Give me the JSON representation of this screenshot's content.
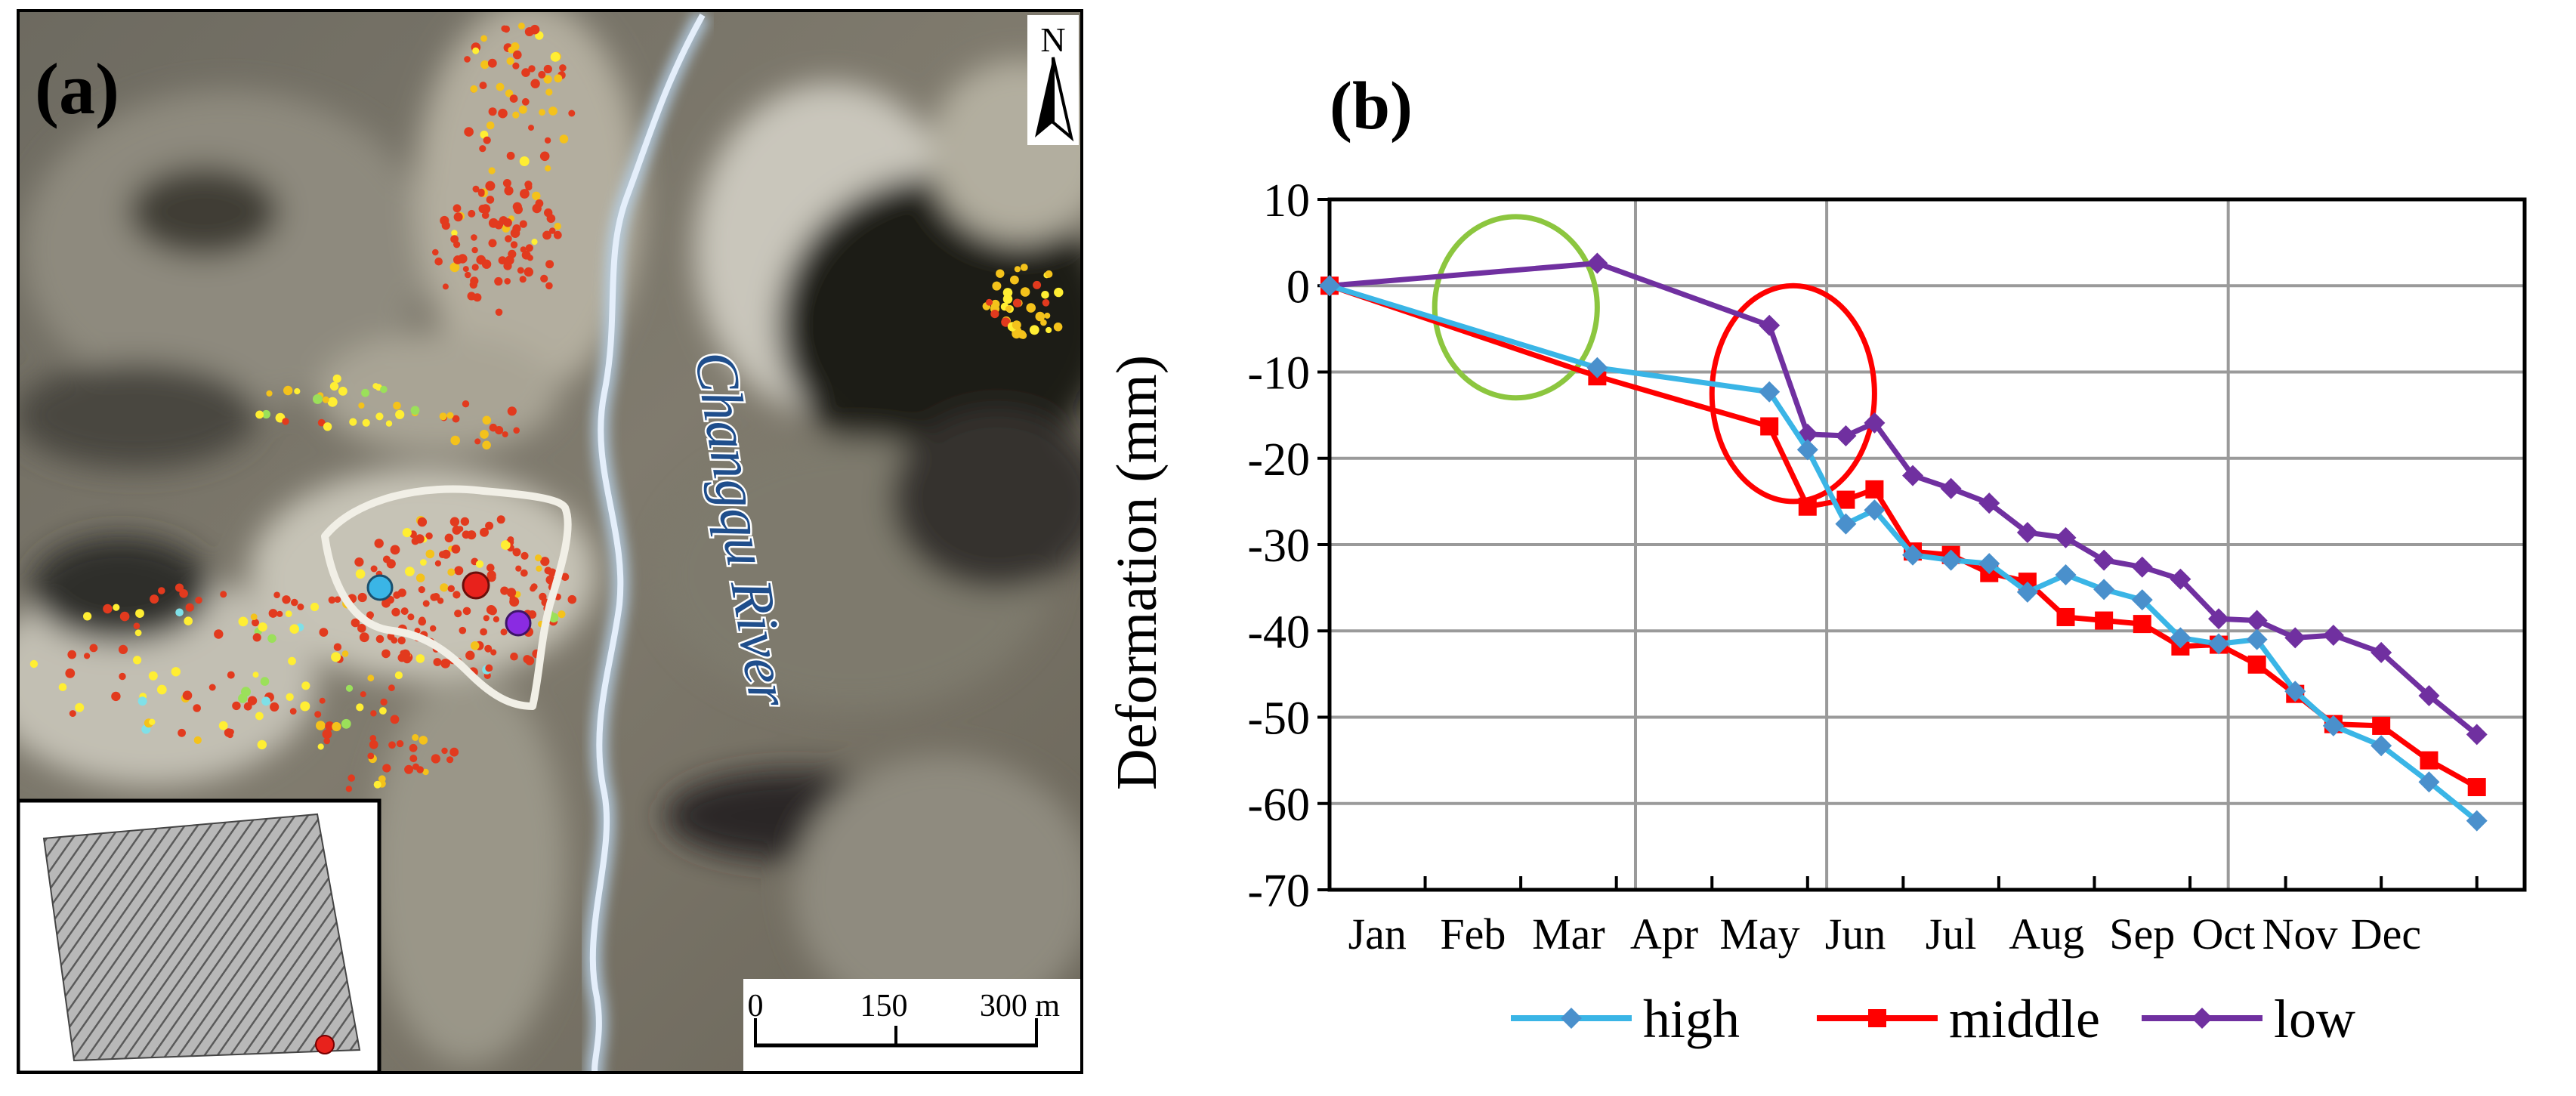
{
  "panel_a": {
    "label": "(a)",
    "north_label": "N",
    "river_label": "Changqu River",
    "scale_ticks": [
      "0",
      "150",
      "300 m"
    ],
    "point_colors": {
      "high": "#3ab5e6",
      "middle": "#e8221c",
      "low": "#8a2be2",
      "dots": [
        "#e23a1e",
        "#f4c21b",
        "#ffee33",
        "#7fe0e8",
        "#9be05a"
      ]
    }
  },
  "panel_b": {
    "label": "(b)"
  },
  "chart_data": {
    "type": "line",
    "title": "",
    "xlabel": "",
    "ylabel": "Deformation (mm)",
    "ylim": [
      -70,
      10
    ],
    "yticks": [
      10,
      0,
      -10,
      -20,
      -30,
      -40,
      -50,
      -60,
      -70
    ],
    "xlim": [
      0,
      12.5
    ],
    "month_labels": [
      "Jan",
      "Feb",
      "Mar",
      "Apr",
      "May",
      "Jun",
      "Jul",
      "Aug",
      "Sep",
      "Oct",
      "Nov",
      "Dec"
    ],
    "month_positions": [
      0.2,
      1.2,
      2.2,
      3.2,
      4.2,
      5.2,
      6.2,
      7.2,
      8.2,
      9.05,
      9.85,
      10.75
    ],
    "vertical_gridlines": [
      3.2,
      5.2,
      9.4
    ],
    "legend_position": "bottom",
    "series": [
      {
        "name": "high",
        "color": "#3ab5e6",
        "marker_color": "#4a90cc",
        "marker": "diamond",
        "x": [
          0,
          2.8,
          4.6,
          5.0,
          5.4,
          5.7,
          6.1,
          6.5,
          6.9,
          7.3,
          7.7,
          8.1,
          8.5,
          8.9,
          9.3,
          9.7,
          10.1,
          10.5,
          11.0,
          11.5,
          12.0
        ],
        "y": [
          0,
          -9.5,
          -12.3,
          -19,
          -27.6,
          -26,
          -31.2,
          -31.8,
          -32.2,
          -35.5,
          -33.5,
          -35.2,
          -36.4,
          -40.8,
          -41.5,
          -41,
          -47,
          -51,
          -53.3,
          -57.5,
          -62
        ]
      },
      {
        "name": "middle",
        "color": "#ff0000",
        "marker_color": "#ff0000",
        "marker": "square",
        "x": [
          0,
          2.8,
          4.6,
          5.0,
          5.4,
          5.7,
          6.1,
          6.5,
          6.9,
          7.3,
          7.7,
          8.1,
          8.5,
          8.9,
          9.3,
          9.7,
          10.1,
          10.5,
          11.0,
          11.5,
          12.0
        ],
        "y": [
          0,
          -10.5,
          -16.3,
          -25.6,
          -24.8,
          -23.6,
          -30.8,
          -31.2,
          -33.3,
          -34.3,
          -38.4,
          -38.8,
          -39.2,
          -41.8,
          -41.6,
          -43.9,
          -47.3,
          -50.8,
          -51,
          -55,
          -58.1
        ]
      },
      {
        "name": "low",
        "color": "#7030a0",
        "marker_color": "#7030a0",
        "marker": "diamond",
        "x": [
          0,
          2.8,
          4.6,
          5.0,
          5.4,
          5.7,
          6.1,
          6.5,
          6.9,
          7.3,
          7.7,
          8.1,
          8.5,
          8.9,
          9.3,
          9.7,
          10.1,
          10.5,
          11.0,
          11.5,
          12.0
        ],
        "y": [
          0,
          2.6,
          -4.6,
          -17.2,
          -17.4,
          -15.9,
          -22,
          -23.5,
          -25.2,
          -28.6,
          -29.2,
          -31.8,
          -32.6,
          -34,
          -38.6,
          -38.8,
          -40.8,
          -40.5,
          -42.5,
          -47.5,
          -52
        ]
      }
    ],
    "annotations": [
      {
        "shape": "ellipse",
        "color": "#8cc63f",
        "cx": 1.95,
        "cy": -2.5,
        "rx": 0.85,
        "ry": 10.5
      },
      {
        "shape": "ellipse",
        "color": "#ff0000",
        "cx": 4.85,
        "cy": -12.5,
        "rx": 0.85,
        "ry": 12.5
      }
    ]
  }
}
